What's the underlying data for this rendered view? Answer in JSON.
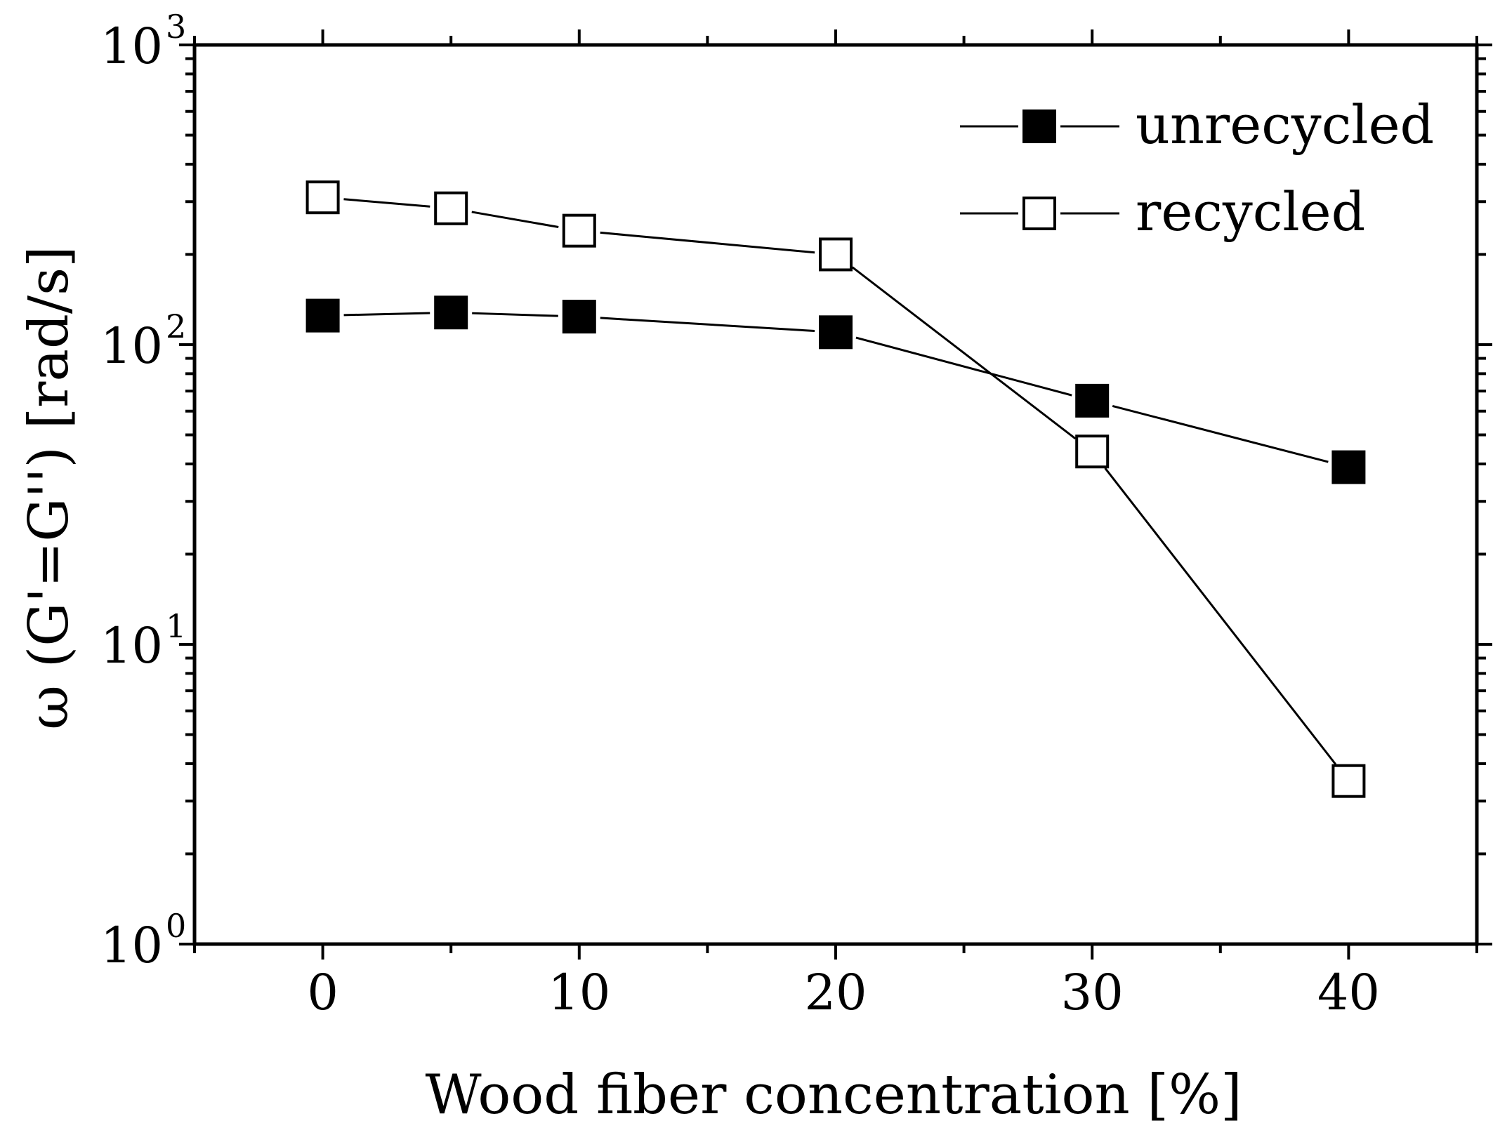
{
  "chart_data": {
    "type": "line",
    "title": "",
    "xlabel": "Wood fiber concentration [%]",
    "ylabel": "ω (G'=G'') [rad/s]",
    "xlim": [
      -5,
      45
    ],
    "ylim": [
      1,
      1000
    ],
    "yscale": "log",
    "x_ticks": [
      0,
      10,
      20,
      30,
      40
    ],
    "x_tick_labels": [
      "0",
      "10",
      "20",
      "30",
      "40"
    ],
    "y_ticks": [
      {
        "base": "10",
        "exp": "0",
        "value": 1
      },
      {
        "base": "10",
        "exp": "1",
        "value": 10
      },
      {
        "base": "10",
        "exp": "2",
        "value": 100
      },
      {
        "base": "10",
        "exp": "3",
        "value": 1000
      }
    ],
    "legend_position": "top-right",
    "series": [
      {
        "name": "unrecycled",
        "marker": "filled-square",
        "color": "#000000",
        "x": [
          0,
          5,
          10,
          20,
          30,
          40
        ],
        "y": [
          125,
          128,
          124,
          110,
          65,
          39
        ]
      },
      {
        "name": "recycled",
        "marker": "open-square",
        "color": "#000000",
        "x": [
          0,
          5,
          10,
          20,
          30,
          40
        ],
        "y": [
          310,
          285,
          240,
          200,
          44,
          3.5
        ]
      }
    ]
  }
}
